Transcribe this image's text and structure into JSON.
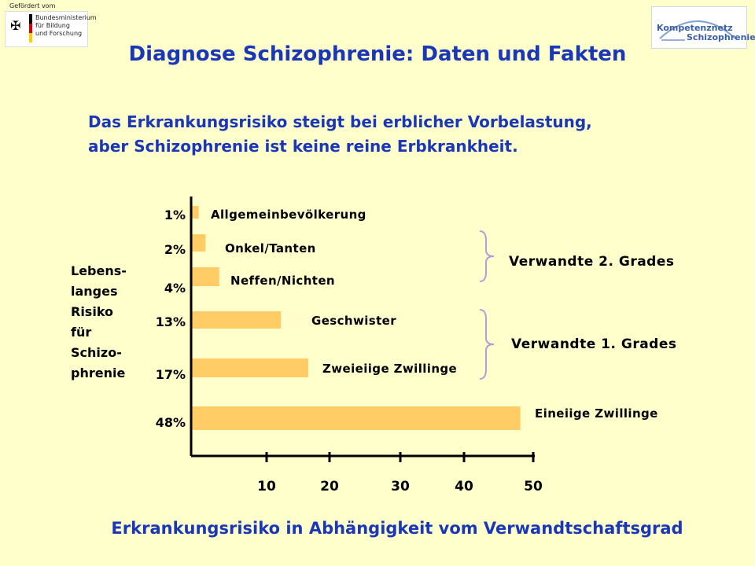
{
  "sponsor": {
    "prefix": "Gefördert vom",
    "lines": [
      "Bundesministerium",
      "für Bildung",
      "und Forschung"
    ]
  },
  "logo": {
    "line1": "Kompetenznetz",
    "line2": "Schizophrenie"
  },
  "title": "Diagnose Schizophrenie: Daten und Fakten",
  "subtitle_lines": [
    "Das Erkrankungsrisiko steigt bei erblicher Vorbelastung,",
    "aber Schizophrenie ist keine reine Erbkrankheit."
  ],
  "ylabel_lines": [
    "Lebens-",
    "langes",
    "Risiko",
    "für",
    "Schizo-",
    "phrenie"
  ],
  "groups": [
    {
      "label": "Verwandte 2. Grades"
    },
    {
      "label": "Verwandte 1. Grades"
    }
  ],
  "footer": "Erkrankungsrisiko in Abhängigkeit vom Verwandtschaftsgrad",
  "colors": {
    "bar": "#ffcc66",
    "text_blue": "#1a37b8",
    "background": "#ffffcc"
  },
  "chart_data": {
    "type": "bar",
    "orientation": "horizontal",
    "categories": [
      "Allgemeinbevölkerung",
      "Onkel/Tanten",
      "Neffen/Nichten",
      "Geschwister",
      "Zweieiige Zwillinge",
      "Eineiige Zwillinge"
    ],
    "values": [
      1,
      2,
      4,
      13,
      17,
      48
    ],
    "value_labels": [
      "1%",
      "2%",
      "4%",
      "13%",
      "17%",
      "48%"
    ],
    "xticks": [
      10,
      20,
      30,
      40,
      50
    ],
    "xlim": [
      0,
      50
    ],
    "grid": false
  }
}
